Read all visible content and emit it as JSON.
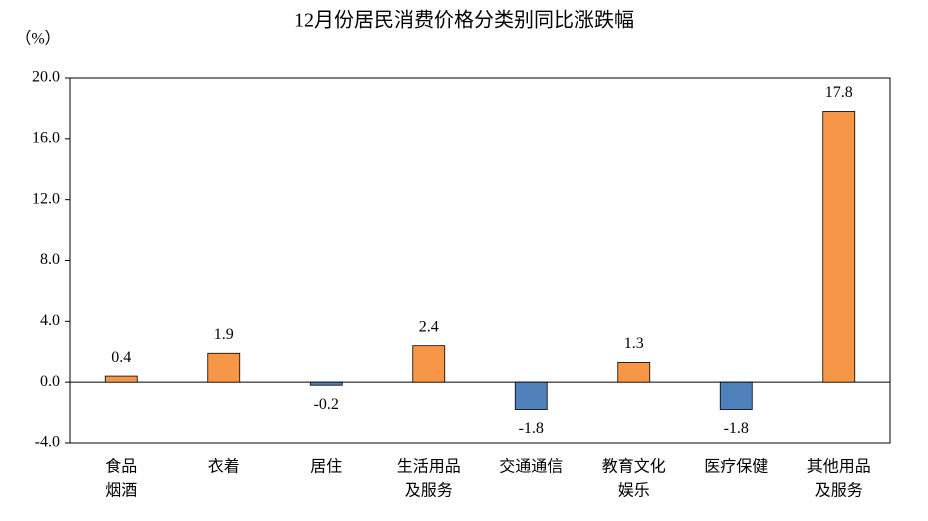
{
  "chart_data": {
    "type": "bar",
    "title": "12月份居民消费价格分类别同比涨跌幅",
    "y_label": "（%）",
    "categories": [
      [
        "食品",
        "烟酒"
      ],
      [
        "衣着"
      ],
      [
        "居住"
      ],
      [
        "生活用品",
        "及服务"
      ],
      [
        "交通通信"
      ],
      [
        "教育文化",
        "娱乐"
      ],
      [
        "医疗保健"
      ],
      [
        "其他用品",
        "及服务"
      ]
    ],
    "values": [
      0.4,
      1.9,
      -0.2,
      2.4,
      -1.8,
      1.3,
      -1.8,
      17.8
    ],
    "positive_color": "#f79646",
    "negative_color": "#4f81bd",
    "ylim": [
      -4,
      20
    ],
    "yticks": [
      {
        "value": -4,
        "label": "-4.0"
      },
      {
        "value": 0,
        "label": "0.0"
      },
      {
        "value": 4,
        "label": "4.0"
      },
      {
        "value": 8,
        "label": "8.0"
      },
      {
        "value": 12,
        "label": "12.0"
      },
      {
        "value": 16,
        "label": "16.0"
      },
      {
        "value": 20,
        "label": "20.0"
      }
    ]
  }
}
